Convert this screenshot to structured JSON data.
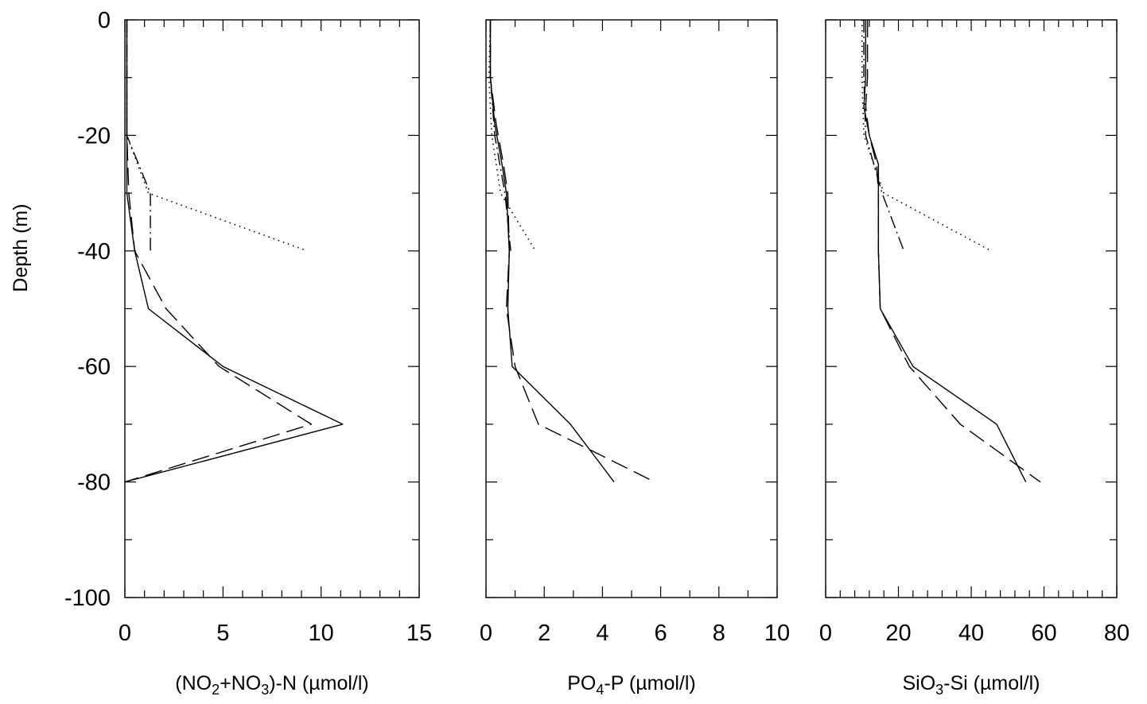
{
  "chart_data": [
    {
      "type": "line",
      "xlabel": "(NO2+NO3)-N (µmol/l)",
      "xlabel_parts": [
        {
          "t": "(NO",
          "sub": false
        },
        {
          "t": "2",
          "sub": true
        },
        {
          "t": "+NO",
          "sub": false
        },
        {
          "t": "3",
          "sub": true
        },
        {
          "t": ")-N (µmol/l)",
          "sub": false
        }
      ],
      "ylabel": "Depth (m)",
      "xlim": [
        0,
        15
      ],
      "ylim": [
        -100,
        0
      ],
      "xticks": [
        0,
        5,
        10,
        15
      ],
      "x_minor_step": 1,
      "yticks": [
        0,
        -20,
        -40,
        -60,
        -80,
        -100
      ],
      "y_minor_step": 10,
      "show_y_tick_labels": true,
      "series": [
        {
          "style": "solid",
          "x": [
            0.1,
            0.1,
            0.1,
            0.1,
            0.5,
            1.2,
            5.0,
            11.1,
            0.0
          ],
          "y": [
            0,
            -10,
            -20,
            -30,
            -40,
            -50,
            -60,
            -70,
            -80
          ]
        },
        {
          "style": "dashed",
          "x": [
            0.1,
            0.1,
            0.1,
            0.2,
            0.5,
            2.1,
            4.8,
            9.5,
            0.0
          ],
          "y": [
            0,
            -10,
            -20,
            -30,
            -40,
            -50,
            -60,
            -70,
            -80
          ]
        },
        {
          "style": "dotted",
          "x": [
            0.1,
            0.1,
            0.1,
            1.2,
            9.3
          ],
          "y": [
            0,
            -10,
            -20,
            -30,
            -40
          ]
        },
        {
          "style": "dashdot",
          "x": [
            0.1,
            0.1,
            0.1,
            1.3,
            1.3
          ],
          "y": [
            0,
            -10,
            -20,
            -30,
            -40
          ]
        }
      ]
    },
    {
      "type": "line",
      "xlabel": "PO4-P (µmol/l)",
      "xlabel_parts": [
        {
          "t": "PO",
          "sub": false
        },
        {
          "t": "4",
          "sub": true
        },
        {
          "t": "-P (µmol/l)",
          "sub": false
        }
      ],
      "xlim": [
        0,
        10
      ],
      "ylim": [
        -100,
        0
      ],
      "xticks": [
        0,
        2,
        4,
        6,
        8,
        10
      ],
      "x_minor_step": 1,
      "yticks": [
        0,
        -20,
        -40,
        -60,
        -80,
        -100
      ],
      "y_minor_step": 10,
      "show_y_tick_labels": false,
      "series": [
        {
          "style": "solid",
          "x": [
            0.15,
            0.15,
            0.3,
            0.55,
            0.7,
            0.8,
            0.75,
            0.9,
            2.9,
            4.4
          ],
          "y": [
            0,
            -10,
            -18,
            -25,
            -30,
            -40,
            -50,
            -60,
            -70,
            -80
          ]
        },
        {
          "style": "dashed",
          "x": [
            0.15,
            0.15,
            0.35,
            0.6,
            0.75,
            0.8,
            0.7,
            1.0,
            1.8,
            5.8
          ],
          "y": [
            0,
            -10,
            -18,
            -25,
            -30,
            -40,
            -50,
            -60,
            -70,
            -80
          ]
        },
        {
          "style": "dotted",
          "x": [
            0.15,
            0.1,
            0.2,
            0.5,
            1.7
          ],
          "y": [
            0,
            -10,
            -20,
            -30,
            -40
          ]
        },
        {
          "style": "dashdot",
          "x": [
            0.15,
            0.15,
            0.3,
            0.65,
            0.85
          ],
          "y": [
            0,
            -10,
            -20,
            -30,
            -40
          ]
        }
      ]
    },
    {
      "type": "line",
      "xlabel": "SiO3-Si (µmol/l)",
      "xlabel_parts": [
        {
          "t": "SiO",
          "sub": false
        },
        {
          "t": "3",
          "sub": true
        },
        {
          "t": "-Si (µmol/l)",
          "sub": false
        }
      ],
      "xlim": [
        0,
        80
      ],
      "ylim": [
        -100,
        0
      ],
      "xticks": [
        0,
        20,
        40,
        60,
        80
      ],
      "x_minor_step": 4,
      "yticks": [
        0,
        -20,
        -40,
        -60,
        -80,
        -100
      ],
      "y_minor_step": 10,
      "show_y_tick_labels": false,
      "series": [
        {
          "style": "solid",
          "x": [
            11,
            11,
            10.5,
            12,
            14.5,
            14.5,
            14.5,
            15,
            24,
            47,
            55
          ],
          "y": [
            0,
            -10,
            -15,
            -20,
            -25,
            -30,
            -40,
            -50,
            -60,
            -70,
            -80
          ]
        },
        {
          "style": "dashed",
          "x": [
            11.5,
            11.5,
            11,
            12,
            14,
            14.5,
            14.5,
            15,
            23,
            37,
            59
          ],
          "y": [
            0,
            -10,
            -15,
            -20,
            -25,
            -30,
            -40,
            -50,
            -60,
            -70,
            -80
          ]
        },
        {
          "style": "dotted",
          "x": [
            10,
            10,
            10.5,
            16,
            45.5
          ],
          "y": [
            0,
            -10,
            -20,
            -30,
            -40
          ]
        },
        {
          "style": "dashdot",
          "x": [
            10.5,
            10.5,
            11,
            15.5,
            21.5
          ],
          "y": [
            0,
            -10,
            -20,
            -30,
            -40
          ]
        }
      ]
    }
  ]
}
